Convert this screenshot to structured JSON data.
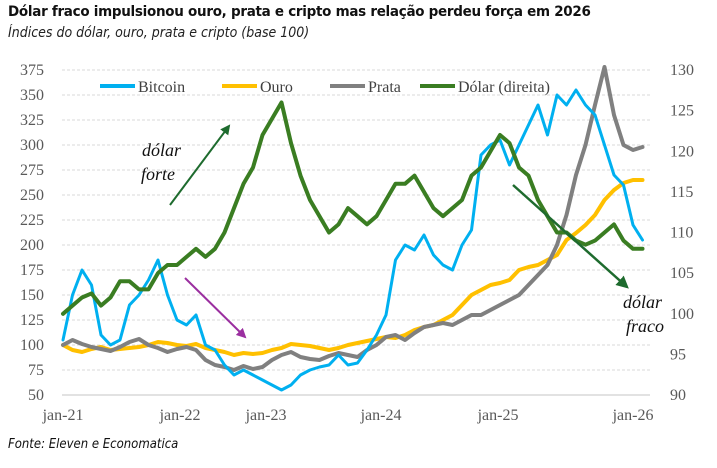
{
  "header": {
    "title": "Dólar fraco impulsionou ouro, prata e cripto mas relação perdeu força em 2026",
    "subtitle": "Índices do dólar, ouro, prata e cripto (base 100)"
  },
  "footer": {
    "source": "Fonte: Eleven e Economatica"
  },
  "chart_data": {
    "type": "line",
    "title": "Dólar fraco impulsionou ouro, prata e cripto mas relação perdeu força em 2026",
    "subtitle": "Índices do dólar, ouro, prata e cripto (base 100)",
    "xlabel": "",
    "ylabel": "",
    "x_ticks": [
      "jan-21",
      "jan-22",
      "jan-23",
      "jan-24",
      "jan-25",
      "jan-26"
    ],
    "x_range": [
      "2021-01",
      "2026-02"
    ],
    "y_left": {
      "range": [
        50,
        375
      ],
      "ticks": [
        50,
        75,
        100,
        125,
        150,
        175,
        200,
        225,
        250,
        275,
        300,
        325,
        350,
        375
      ]
    },
    "y_right": {
      "range": [
        90,
        130
      ],
      "ticks": [
        90,
        95,
        100,
        105,
        110,
        115,
        120,
        125,
        130
      ]
    },
    "grid": true,
    "legend_position": "top",
    "series": [
      {
        "name": "Bitcoin",
        "axis": "left",
        "color": "#00B0F0",
        "values": [
          105,
          150,
          175,
          160,
          110,
          100,
          105,
          140,
          150,
          165,
          185,
          150,
          125,
          120,
          130,
          100,
          95,
          80,
          70,
          75,
          70,
          65,
          60,
          55,
          60,
          70,
          75,
          78,
          80,
          90,
          80,
          82,
          95,
          110,
          130,
          185,
          200,
          195,
          210,
          190,
          180,
          175,
          200,
          215,
          290,
          300,
          305,
          280,
          300,
          320,
          340,
          310,
          350,
          340,
          355,
          340,
          330,
          300,
          270,
          260,
          220,
          205
        ]
      },
      {
        "name": "Ouro",
        "axis": "left",
        "color": "#FFC000",
        "values": [
          100,
          95,
          93,
          96,
          98,
          95,
          96,
          97,
          98,
          100,
          103,
          102,
          100,
          99,
          101,
          97,
          95,
          93,
          90,
          92,
          91,
          92,
          95,
          97,
          101,
          100,
          99,
          97,
          95,
          97,
          100,
          102,
          104,
          106,
          108,
          107,
          110,
          115,
          118,
          120,
          125,
          130,
          140,
          150,
          155,
          160,
          162,
          165,
          175,
          178,
          180,
          185,
          190,
          205,
          212,
          220,
          230,
          245,
          255,
          262,
          265,
          265
        ]
      },
      {
        "name": "Prata",
        "axis": "left",
        "color": "#808080",
        "values": [
          100,
          105,
          101,
          98,
          96,
          94,
          98,
          103,
          106,
          100,
          97,
          93,
          96,
          98,
          95,
          85,
          80,
          78,
          75,
          79,
          76,
          78,
          85,
          90,
          93,
          88,
          86,
          85,
          89,
          92,
          90,
          88,
          95,
          100,
          108,
          110,
          105,
          112,
          118,
          120,
          122,
          120,
          125,
          130,
          130,
          135,
          140,
          145,
          150,
          160,
          170,
          180,
          200,
          230,
          270,
          300,
          340,
          380,
          330,
          300,
          295,
          298
        ]
      },
      {
        "name": "Dólar (direita)",
        "axis": "right",
        "color": "#3A7D22",
        "values": [
          100,
          101,
          102,
          102.5,
          101,
          102,
          104,
          104,
          103,
          103,
          105,
          106,
          106,
          107,
          108,
          107,
          108,
          110,
          113,
          116,
          118,
          122,
          124,
          126,
          121,
          117,
          114,
          112,
          110,
          111,
          113,
          112,
          111,
          112,
          114,
          116,
          116,
          117,
          115,
          113,
          112,
          113,
          114,
          117,
          118,
          120,
          122,
          121,
          118,
          117,
          114,
          112,
          110,
          110,
          109,
          108.5,
          109,
          110,
          111,
          109,
          108,
          108
        ]
      }
    ],
    "annotations": [
      {
        "text": "dólar forte",
        "arrow": "up",
        "color": "#1E6B2E",
        "near": "2021-11 to 2022-08"
      },
      {
        "text": "",
        "arrow": "down",
        "color": "#9B2FA0",
        "near": "2022-05 to 2022-10"
      },
      {
        "text": "dólar fraco",
        "arrow": "down",
        "color": "#1E6B2E",
        "near": "2024-11 to 2025-10"
      }
    ]
  }
}
